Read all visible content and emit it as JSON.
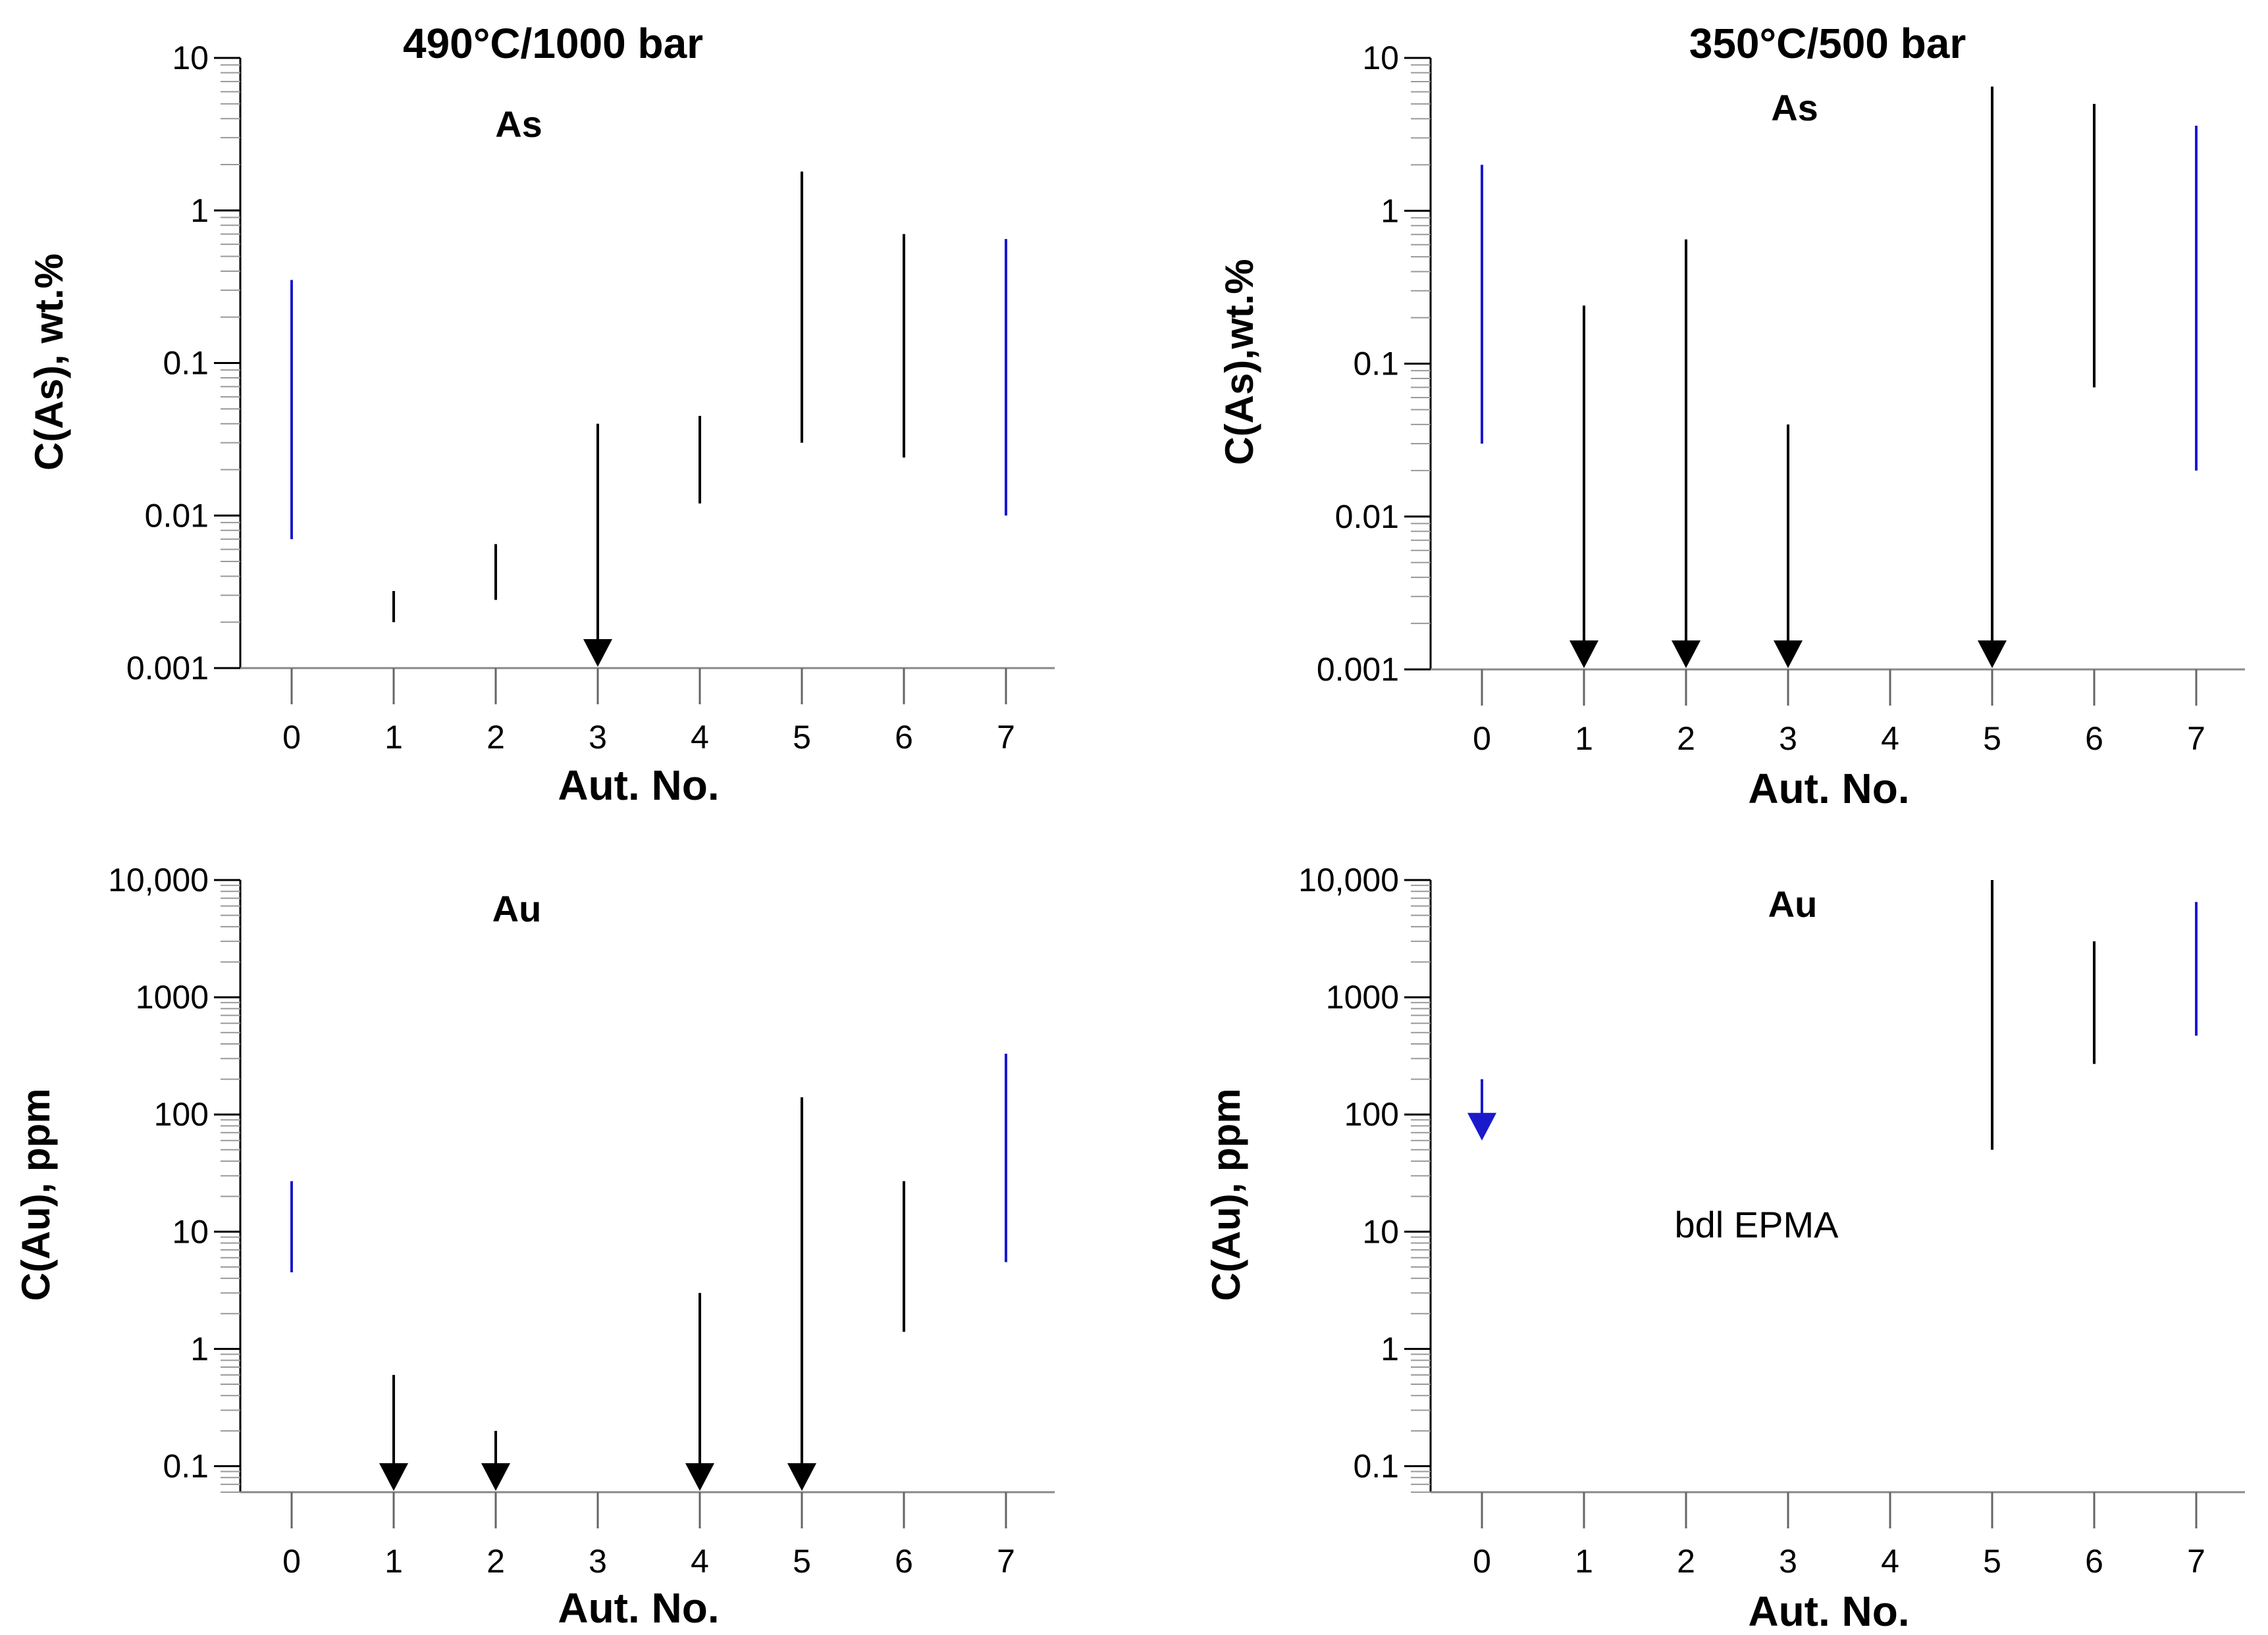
{
  "chart_data": [
    {
      "type": "range",
      "title": "490°C/1000 bar",
      "element_label": "As",
      "ylabel": "C(As), wt.%",
      "xlabel": "Aut. No.",
      "yscale": "log",
      "ylim": [
        0.001,
        10
      ],
      "y_tick_labels": [
        "0.001",
        "0.01",
        "0.1",
        "1",
        "10"
      ],
      "x_tick_labels": [
        "0",
        "1",
        "2",
        "3",
        "4",
        "5",
        "6",
        "7"
      ],
      "colors": {
        "black": "#000000",
        "blue": "#1a1acc"
      },
      "ranges": [
        {
          "aut": "0",
          "low": 0.007,
          "high": 0.35,
          "color": "blue",
          "arrow": false
        },
        {
          "aut": "1",
          "low": 0.002,
          "high": 0.0032,
          "color": "black",
          "arrow": false
        },
        {
          "aut": "2",
          "low": 0.0028,
          "high": 0.0065,
          "color": "black",
          "arrow": false
        },
        {
          "aut": "3",
          "low": 0.001,
          "high": 0.04,
          "color": "black",
          "arrow": true
        },
        {
          "aut": "4",
          "low": 0.012,
          "high": 0.045,
          "color": "black",
          "arrow": false
        },
        {
          "aut": "5",
          "low": 0.03,
          "high": 1.8,
          "color": "black",
          "arrow": false
        },
        {
          "aut": "6",
          "low": 0.024,
          "high": 0.7,
          "color": "black",
          "arrow": false
        },
        {
          "aut": "7",
          "low": 0.01,
          "high": 0.65,
          "color": "blue",
          "arrow": false
        }
      ]
    },
    {
      "type": "range",
      "title": "350°C/500 bar",
      "element_label": "As",
      "ylabel": "C(As),wt.%",
      "xlabel": "Aut. No.",
      "yscale": "log",
      "ylim": [
        0.001,
        10
      ],
      "y_tick_labels": [
        "0.001",
        "0.01",
        "0.1",
        "1",
        "10"
      ],
      "x_tick_labels": [
        "0",
        "1",
        "2",
        "3",
        "4",
        "5",
        "6",
        "7"
      ],
      "colors": {
        "black": "#000000",
        "blue": "#1a1acc"
      },
      "ranges": [
        {
          "aut": "0",
          "low": 0.03,
          "high": 2.0,
          "color": "blue",
          "arrow": false
        },
        {
          "aut": "1",
          "low": 0.001,
          "high": 0.24,
          "color": "black",
          "arrow": true
        },
        {
          "aut": "2",
          "low": 0.001,
          "high": 0.65,
          "color": "black",
          "arrow": true
        },
        {
          "aut": "3",
          "low": 0.001,
          "high": 0.04,
          "color": "black",
          "arrow": true
        },
        {
          "aut": "5",
          "low": 0.001,
          "high": 6.5,
          "color": "black",
          "arrow": true
        },
        {
          "aut": "6",
          "low": 0.07,
          "high": 5.0,
          "color": "black",
          "arrow": false
        },
        {
          "aut": "7",
          "low": 0.02,
          "high": 3.6,
          "color": "blue",
          "arrow": false
        }
      ]
    },
    {
      "type": "range",
      "title": "",
      "element_label": "Au",
      "ylabel": "C(Au), ppm",
      "xlabel": "Aut. No.",
      "yscale": "log",
      "ylim": [
        0.06,
        10000
      ],
      "y_tick_labels": [
        "0.1",
        "1",
        "10",
        "100",
        "1000",
        "10,000"
      ],
      "x_tick_labels": [
        "0",
        "1",
        "2",
        "3",
        "4",
        "5",
        "6",
        "7"
      ],
      "colors": {
        "black": "#000000",
        "blue": "#1a1acc"
      },
      "ranges": [
        {
          "aut": "0",
          "low": 4.5,
          "high": 27,
          "color": "blue",
          "arrow": false
        },
        {
          "aut": "1",
          "low": 0.06,
          "high": 0.6,
          "color": "black",
          "arrow": true
        },
        {
          "aut": "2",
          "low": 0.06,
          "high": 0.2,
          "color": "black",
          "arrow": true
        },
        {
          "aut": "4",
          "low": 0.06,
          "high": 3.0,
          "color": "black",
          "arrow": true
        },
        {
          "aut": "5",
          "low": 0.06,
          "high": 140,
          "color": "black",
          "arrow": true
        },
        {
          "aut": "6",
          "low": 1.4,
          "high": 27,
          "color": "black",
          "arrow": false
        },
        {
          "aut": "7",
          "low": 5.5,
          "high": 330,
          "color": "blue",
          "arrow": false
        }
      ]
    },
    {
      "type": "range",
      "title": "",
      "element_label": "Au",
      "ylabel": "C(Au), ppm",
      "xlabel": "Aut. No.",
      "yscale": "log",
      "ylim": [
        0.06,
        10000
      ],
      "y_tick_labels": [
        "0.1",
        "1",
        "10",
        "100",
        "1000",
        "10,000"
      ],
      "x_tick_labels": [
        "0",
        "1",
        "2",
        "3",
        "4",
        "5",
        "6",
        "7"
      ],
      "annotation": "bdl EPMA",
      "colors": {
        "black": "#000000",
        "blue": "#1a1acc"
      },
      "ranges": [
        {
          "aut": "0",
          "low": 60,
          "high": 200,
          "color": "blue",
          "arrow": true
        },
        {
          "aut": "5",
          "low": 50,
          "high": 10000,
          "color": "black",
          "arrow": false
        },
        {
          "aut": "6",
          "low": 270,
          "high": 3000,
          "color": "black",
          "arrow": false
        },
        {
          "aut": "7",
          "low": 470,
          "high": 6500,
          "color": "blue",
          "arrow": false
        }
      ]
    }
  ]
}
